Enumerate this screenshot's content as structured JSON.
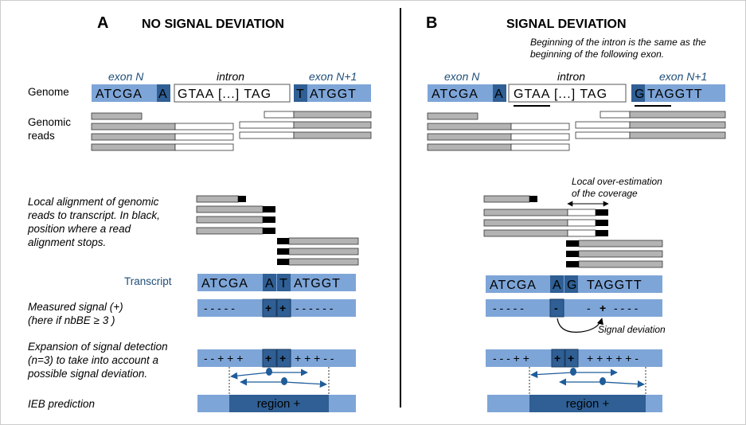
{
  "panel_a": {
    "letter": "A",
    "title": "NO SIGNAL DEVIATION",
    "exon_n": "exon N",
    "intron": "intron",
    "exon_n1": "exon N+1",
    "genome_label": "Genome",
    "genomic_reads_label_1": "Genomic",
    "genomic_reads_label_2": "reads",
    "seq_exon": "ATCGA",
    "seq_exon_last": "A",
    "seq_intron": "GTAA [...] TAG",
    "seq_next_first": "T",
    "seq_next": "ATGGT",
    "local_align_1": "Local alignment of genomic",
    "local_align_2": "reads to transcript. In black,",
    "local_align_3": "position where a read",
    "local_align_4": "alignment stops.",
    "transcript_label": "Transcript",
    "transcript_left": "ATCGA",
    "transcript_mid1": "A",
    "transcript_mid2": "T",
    "transcript_right": "ATGGT",
    "measured_1": "Measured signal (+)",
    "measured_2": "(here if nbBE ≥ 3 )",
    "signal_left": "- - - - -",
    "signal_plus": "+",
    "signal_right": "- - - - - -",
    "expansion_1": "Expansion of signal detection",
    "expansion_2": "(n=3) to take into account a",
    "expansion_3": "possible signal deviation.",
    "exp_left": "- -  + + +",
    "exp_right": "+ + +  - -",
    "ieb_label": "IEB prediction",
    "region_label": "region +"
  },
  "panel_b": {
    "letter": "B",
    "title": "SIGNAL DEVIATION",
    "note_1": "Beginning of the intron is the same as the",
    "note_2": "beginning of the following exon.",
    "exon_n": "exon N",
    "intron": "intron",
    "exon_n1": "exon N+1",
    "seq_exon": "ATCGA",
    "seq_exon_last": "A",
    "seq_intron": "GTAA [...] TAG",
    "seq_next_first": "G",
    "seq_next": "TAGGTT",
    "overest_1": "Local over-estimation",
    "overest_2": "of the coverage",
    "transcript_left": "ATCGA",
    "transcript_mid1": "A",
    "transcript_mid2": "G",
    "transcript_right": "TAGGTT",
    "signal_left": "- - - - -",
    "signal_minus": "-",
    "signal_right_1": "-",
    "signal_plus": "+",
    "signal_right_2": "- - - -",
    "deviation_label": "Signal deviation",
    "exp_left": "- - -  + +",
    "exp_right": "+ +  + + +  -",
    "region_label": "region +"
  },
  "colors": {
    "light_blue": "#7ea5d8",
    "dark_blue": "#2f5f94",
    "gray_read": "#b3b3b3",
    "arrow_blue": "#1f5c99"
  }
}
